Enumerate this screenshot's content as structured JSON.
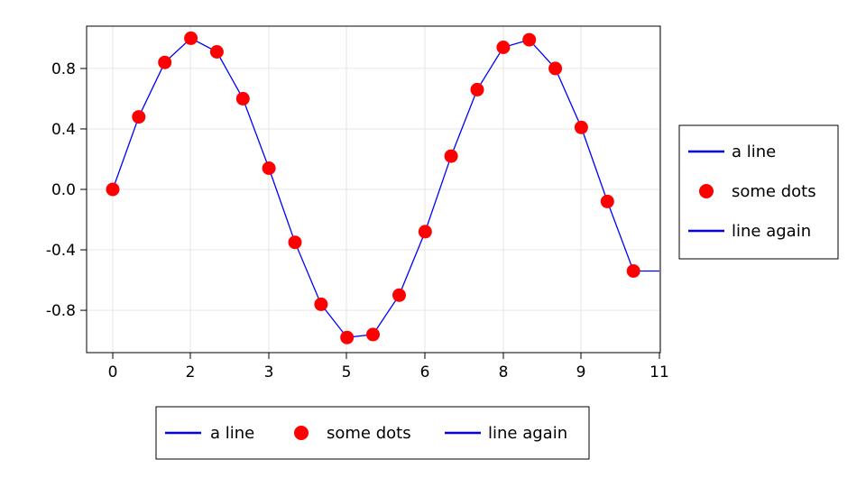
{
  "chart_data": {
    "type": "line",
    "title": "",
    "xlabel": "",
    "ylabel": "",
    "xlim": [
      -0.35,
      11
    ],
    "ylim": [
      -1.08,
      1.08
    ],
    "x_ticks": [
      0,
      2,
      3,
      5,
      6,
      8,
      9,
      11
    ],
    "x_tick_labels": [
      "0",
      "2",
      "3",
      "5",
      "6",
      "8",
      "9",
      "11"
    ],
    "y_ticks": [
      0.8,
      0.4,
      0.0,
      -0.4,
      -0.8
    ],
    "y_tick_labels": [
      "0.8",
      "0.4",
      "0.0",
      "-0.4",
      "-0.8"
    ],
    "grid": true,
    "series": [
      {
        "name": "a line",
        "type": "line",
        "color": "#0000ff",
        "x": [
          0,
          0.333,
          0.667,
          1,
          1.333,
          1.667,
          2,
          2.333,
          2.667,
          3,
          3.333,
          3.667,
          4,
          4.333,
          4.667,
          5,
          5.333,
          5.667,
          6,
          6.333,
          6.667,
          7
        ],
        "y": [
          0.0,
          0.48,
          0.84,
          1.0,
          0.91,
          0.6,
          0.14,
          -0.35,
          -0.76,
          -0.98,
          -0.96,
          -0.7,
          -0.28,
          0.22,
          0.66,
          0.94,
          0.99,
          0.8,
          0.41,
          -0.08,
          -0.54,
          -0.54
        ]
      },
      {
        "name": "some dots",
        "type": "scatter",
        "color": "#ff0000",
        "x": [
          0,
          0.333,
          0.667,
          1,
          1.333,
          1.667,
          2,
          2.333,
          2.667,
          3,
          3.333,
          3.667,
          4,
          4.333,
          4.667,
          5,
          5.333,
          5.667,
          6,
          6.333,
          6.667
        ],
        "y": [
          0.0,
          0.48,
          0.84,
          1.0,
          0.91,
          0.6,
          0.14,
          -0.35,
          -0.76,
          -0.98,
          -0.96,
          -0.7,
          -0.28,
          0.22,
          0.66,
          0.94,
          0.99,
          0.8,
          0.41,
          -0.08,
          -0.54
        ]
      },
      {
        "name": "line again",
        "type": "line",
        "color": "#0000ff",
        "x": [],
        "y": []
      }
    ],
    "legend_right": {
      "position": "right",
      "entries": [
        "a line",
        "some dots",
        "line again"
      ]
    },
    "legend_bottom": {
      "position": "bottom",
      "entries": [
        "a line",
        "some dots",
        "line again"
      ]
    }
  }
}
